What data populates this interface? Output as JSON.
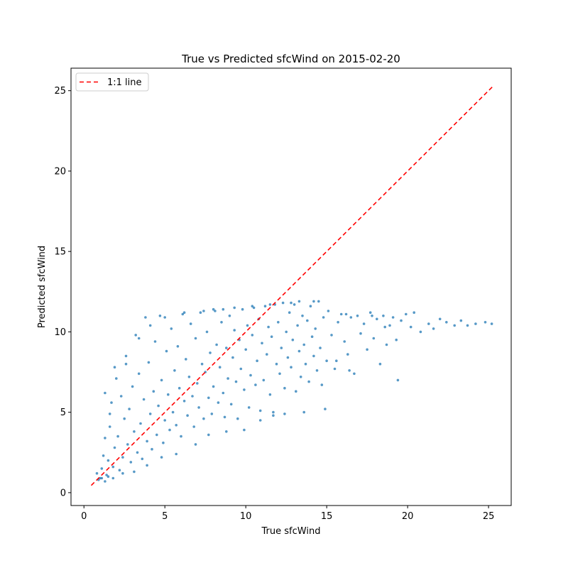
{
  "chart_data": {
    "type": "scatter",
    "title": "True vs Predicted sfcWind on 2015-02-20",
    "xlabel": "True sfcWind",
    "ylabel": "Predicted sfcWind",
    "xlim": [
      -0.8,
      26.4
    ],
    "ylim": [
      -0.8,
      26.4
    ],
    "xticks": [
      0,
      5,
      10,
      15,
      20,
      25
    ],
    "yticks": [
      0,
      5,
      10,
      15,
      20,
      25
    ],
    "grid": false,
    "legend": {
      "placement": "top-left",
      "entries": [
        "1:1 line"
      ]
    },
    "colors": {
      "points": "#1f77b4",
      "reference_line": "#ff0000"
    },
    "reference_line": {
      "name": "1:1 line",
      "x": [
        0.45,
        25.3
      ],
      "y": [
        0.45,
        25.3
      ],
      "style": "dashed"
    },
    "series": [
      {
        "marker": "dot",
        "points": [
          [
            0.8,
            1.2
          ],
          [
            0.9,
            0.8
          ],
          [
            1.0,
            0.9
          ],
          [
            1.1,
            1.5
          ],
          [
            1.2,
            2.3
          ],
          [
            1.3,
            3.4
          ],
          [
            1.4,
            1.1
          ],
          [
            1.5,
            2.0
          ],
          [
            1.6,
            4.1
          ],
          [
            1.7,
            5.6
          ],
          [
            1.8,
            1.6
          ],
          [
            1.9,
            2.8
          ],
          [
            2.0,
            7.1
          ],
          [
            2.1,
            3.5
          ],
          [
            2.2,
            1.4
          ],
          [
            2.3,
            6.0
          ],
          [
            2.4,
            2.2
          ],
          [
            2.5,
            4.6
          ],
          [
            2.6,
            8.5
          ],
          [
            2.7,
            3.0
          ],
          [
            2.8,
            5.2
          ],
          [
            2.9,
            1.9
          ],
          [
            3.0,
            6.6
          ],
          [
            3.1,
            3.8
          ],
          [
            3.2,
            9.8
          ],
          [
            3.3,
            2.5
          ],
          [
            3.4,
            7.4
          ],
          [
            3.5,
            4.3
          ],
          [
            3.6,
            2.1
          ],
          [
            3.7,
            5.8
          ],
          [
            3.8,
            10.9
          ],
          [
            3.9,
            3.2
          ],
          [
            4.0,
            8.1
          ],
          [
            4.1,
            4.9
          ],
          [
            4.2,
            2.7
          ],
          [
            4.3,
            6.3
          ],
          [
            4.4,
            9.4
          ],
          [
            4.5,
            3.6
          ],
          [
            4.6,
            5.4
          ],
          [
            4.7,
            11.0
          ],
          [
            4.8,
            7.0
          ],
          [
            4.9,
            3.1
          ],
          [
            5.0,
            4.5
          ],
          [
            5.1,
            8.8
          ],
          [
            5.2,
            6.1
          ],
          [
            5.3,
            3.9
          ],
          [
            5.4,
            10.2
          ],
          [
            5.5,
            5.0
          ],
          [
            5.6,
            7.6
          ],
          [
            5.7,
            4.2
          ],
          [
            5.8,
            9.1
          ],
          [
            5.9,
            6.5
          ],
          [
            6.0,
            3.5
          ],
          [
            6.1,
            11.1
          ],
          [
            6.2,
            5.7
          ],
          [
            6.3,
            8.3
          ],
          [
            6.4,
            4.8
          ],
          [
            6.5,
            7.2
          ],
          [
            6.6,
            10.5
          ],
          [
            6.7,
            6.0
          ],
          [
            6.8,
            4.1
          ],
          [
            6.9,
            9.6
          ],
          [
            7.0,
            6.8
          ],
          [
            7.1,
            5.3
          ],
          [
            7.2,
            11.2
          ],
          [
            7.3,
            8.0
          ],
          [
            7.4,
            4.6
          ],
          [
            7.5,
            7.5
          ],
          [
            7.6,
            10.0
          ],
          [
            7.7,
            5.9
          ],
          [
            7.8,
            8.7
          ],
          [
            7.9,
            4.9
          ],
          [
            8.0,
            6.6
          ],
          [
            8.1,
            11.3
          ],
          [
            8.2,
            9.2
          ],
          [
            8.3,
            5.6
          ],
          [
            8.4,
            7.8
          ],
          [
            8.5,
            10.6
          ],
          [
            8.6,
            6.2
          ],
          [
            8.7,
            4.7
          ],
          [
            8.8,
            9.0
          ],
          [
            8.9,
            7.1
          ],
          [
            9.0,
            11.0
          ],
          [
            9.1,
            5.5
          ],
          [
            9.2,
            8.4
          ],
          [
            9.3,
            10.1
          ],
          [
            9.4,
            6.9
          ],
          [
            9.5,
            4.6
          ],
          [
            9.6,
            9.5
          ],
          [
            9.7,
            7.7
          ],
          [
            9.8,
            11.4
          ],
          [
            9.9,
            6.4
          ],
          [
            10.0,
            8.9
          ],
          [
            10.1,
            10.4
          ],
          [
            10.2,
            5.3
          ],
          [
            10.3,
            7.3
          ],
          [
            10.4,
            9.8
          ],
          [
            10.5,
            11.5
          ],
          [
            10.6,
            6.7
          ],
          [
            10.7,
            8.2
          ],
          [
            10.8,
            10.8
          ],
          [
            10.9,
            5.1
          ],
          [
            11.0,
            9.3
          ],
          [
            11.1,
            7.0
          ],
          [
            11.2,
            11.6
          ],
          [
            11.3,
            8.6
          ],
          [
            11.4,
            10.3
          ],
          [
            11.5,
            6.1
          ],
          [
            11.6,
            9.7
          ],
          [
            11.7,
            5.0
          ],
          [
            11.8,
            11.7
          ],
          [
            11.9,
            8.0
          ],
          [
            12.0,
            10.6
          ],
          [
            12.1,
            7.4
          ],
          [
            12.2,
            9.0
          ],
          [
            12.3,
            11.8
          ],
          [
            12.4,
            6.5
          ],
          [
            12.5,
            10.0
          ],
          [
            12.6,
            8.4
          ],
          [
            12.7,
            11.2
          ],
          [
            12.8,
            7.8
          ],
          [
            12.9,
            9.5
          ],
          [
            13.0,
            11.7
          ],
          [
            13.1,
            6.3
          ],
          [
            13.2,
            10.4
          ],
          [
            13.3,
            8.8
          ],
          [
            13.4,
            7.2
          ],
          [
            13.5,
            11.0
          ],
          [
            13.6,
            9.2
          ],
          [
            13.7,
            8.0
          ],
          [
            13.8,
            10.7
          ],
          [
            13.9,
            6.9
          ],
          [
            14.0,
            11.6
          ],
          [
            14.1,
            9.7
          ],
          [
            14.2,
            8.5
          ],
          [
            14.3,
            10.2
          ],
          [
            14.4,
            7.6
          ],
          [
            14.5,
            11.9
          ],
          [
            14.6,
            9.0
          ],
          [
            14.7,
            6.7
          ],
          [
            14.8,
            10.9
          ],
          [
            15.0,
            8.2
          ],
          [
            15.1,
            11.3
          ],
          [
            15.3,
            9.8
          ],
          [
            15.5,
            7.7
          ],
          [
            15.7,
            10.6
          ],
          [
            15.9,
            11.1
          ],
          [
            16.1,
            9.4
          ],
          [
            16.3,
            8.6
          ],
          [
            16.5,
            10.9
          ],
          [
            16.7,
            7.4
          ],
          [
            16.9,
            11.0
          ],
          [
            17.1,
            9.9
          ],
          [
            17.3,
            10.5
          ],
          [
            17.5,
            8.9
          ],
          [
            17.7,
            11.2
          ],
          [
            17.9,
            9.6
          ],
          [
            18.1,
            10.8
          ],
          [
            18.3,
            8.0
          ],
          [
            18.5,
            11.0
          ],
          [
            18.7,
            9.2
          ],
          [
            18.9,
            10.4
          ],
          [
            19.1,
            10.9
          ],
          [
            19.3,
            9.5
          ],
          [
            19.6,
            10.7
          ],
          [
            19.9,
            11.1
          ],
          [
            20.2,
            10.3
          ],
          [
            20.4,
            11.2
          ],
          [
            20.8,
            10.0
          ],
          [
            21.3,
            10.5
          ],
          [
            21.6,
            10.2
          ],
          [
            22.0,
            10.8
          ],
          [
            22.4,
            10.6
          ],
          [
            22.9,
            10.4
          ],
          [
            23.3,
            10.7
          ],
          [
            23.7,
            10.4
          ],
          [
            24.2,
            10.5
          ],
          [
            24.8,
            10.6
          ],
          [
            25.2,
            10.5
          ],
          [
            19.4,
            7.0
          ],
          [
            15.6,
            8.2
          ],
          [
            16.4,
            7.6
          ],
          [
            14.9,
            5.2
          ],
          [
            13.6,
            5.0
          ],
          [
            12.4,
            4.9
          ],
          [
            11.7,
            4.8
          ],
          [
            10.9,
            4.5
          ],
          [
            9.9,
            3.9
          ],
          [
            8.8,
            3.8
          ],
          [
            7.7,
            3.6
          ],
          [
            6.9,
            3.0
          ],
          [
            5.7,
            2.4
          ],
          [
            4.8,
            2.2
          ],
          [
            3.9,
            1.7
          ],
          [
            3.1,
            1.3
          ],
          [
            2.4,
            1.2
          ],
          [
            1.8,
            0.9
          ],
          [
            1.3,
            0.7
          ],
          [
            1.1,
            0.9
          ],
          [
            1.5,
            1.0
          ],
          [
            3.4,
            9.6
          ],
          [
            4.1,
            10.4
          ],
          [
            5.0,
            10.9
          ],
          [
            6.2,
            11.2
          ],
          [
            7.4,
            11.3
          ],
          [
            8.6,
            11.4
          ],
          [
            2.6,
            8.0
          ],
          [
            1.9,
            7.8
          ],
          [
            1.3,
            6.2
          ],
          [
            1.6,
            4.9
          ],
          [
            12.8,
            11.8
          ],
          [
            13.3,
            11.9
          ],
          [
            14.2,
            11.9
          ],
          [
            11.5,
            11.7
          ],
          [
            10.4,
            11.6
          ],
          [
            9.3,
            11.5
          ],
          [
            8.0,
            11.4
          ],
          [
            16.2,
            11.1
          ],
          [
            17.8,
            11.0
          ],
          [
            18.6,
            10.3
          ]
        ]
      }
    ]
  }
}
